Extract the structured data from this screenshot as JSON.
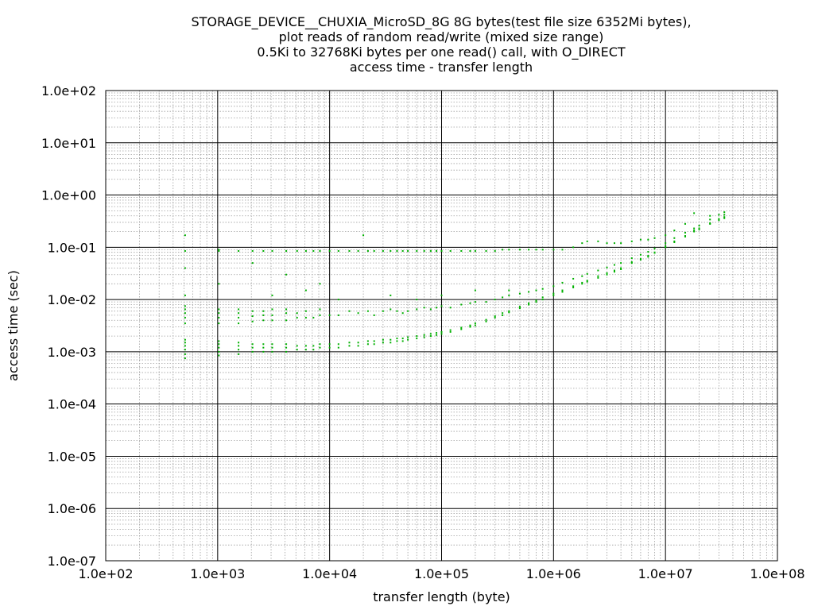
{
  "chart_data": {
    "type": "scatter",
    "title_lines": [
      "STORAGE_DEVICE__CHUXIA_MicroSD_8G 8G bytes(test file size 6352Mi bytes),",
      "plot reads of random read/write (mixed size range)",
      "0.5Ki to 32768Ki bytes per one read() call, with O_DIRECT",
      "access time - transfer length"
    ],
    "xlabel": "transfer length (byte)",
    "ylabel": "access time (sec)",
    "x_scale": "log",
    "y_scale": "log",
    "xlim": [
      100,
      100000000
    ],
    "ylim": [
      1e-07,
      100
    ],
    "x_ticks": [
      {
        "value": 100,
        "label": "1.0e+02"
      },
      {
        "value": 1000,
        "label": "1.0e+03"
      },
      {
        "value": 10000,
        "label": "1.0e+04"
      },
      {
        "value": 100000,
        "label": "1.0e+05"
      },
      {
        "value": 1000000,
        "label": "1.0e+06"
      },
      {
        "value": 10000000,
        "label": "1.0e+07"
      },
      {
        "value": 100000000,
        "label": "1.0e+08"
      }
    ],
    "y_ticks": [
      {
        "value": 100,
        "label": "1.0e+02"
      },
      {
        "value": 10,
        "label": "1.0e+01"
      },
      {
        "value": 1,
        "label": "1.0e+00"
      },
      {
        "value": 0.1,
        "label": "1.0e-01"
      },
      {
        "value": 0.01,
        "label": "1.0e-02"
      },
      {
        "value": 0.001,
        "label": "1.0e-03"
      },
      {
        "value": 0.0001,
        "label": "1.0e-04"
      },
      {
        "value": 1e-05,
        "label": "1.0e-05"
      },
      {
        "value": 1e-06,
        "label": "1.0e-06"
      },
      {
        "value": 1e-07,
        "label": "1.0e-07"
      }
    ],
    "grid": true,
    "minor_grid": true,
    "legend": "none",
    "point_color": "#00b000",
    "series": [
      {
        "points": [
          [
            512,
            0.00075
          ],
          [
            512,
            0.0009
          ],
          [
            512,
            0.0011
          ],
          [
            512,
            0.0013
          ],
          [
            512,
            0.0015
          ],
          [
            512,
            0.0017
          ],
          [
            512,
            0.0035
          ],
          [
            512,
            0.0045
          ],
          [
            512,
            0.0055
          ],
          [
            512,
            0.0065
          ],
          [
            512,
            0.0075
          ],
          [
            512,
            0.012
          ],
          [
            512,
            0.04
          ],
          [
            512,
            0.085
          ],
          [
            512,
            0.17
          ],
          [
            1024,
            0.00085
          ],
          [
            1024,
            0.001
          ],
          [
            1024,
            0.0012
          ],
          [
            1024,
            0.0014
          ],
          [
            1024,
            0.0016
          ],
          [
            1024,
            0.0035
          ],
          [
            1024,
            0.0045
          ],
          [
            1024,
            0.0055
          ],
          [
            1024,
            0.0065
          ],
          [
            1024,
            0.02
          ],
          [
            1024,
            0.085
          ],
          [
            1024,
            0.09
          ],
          [
            1536,
            0.0009
          ],
          [
            1536,
            0.0011
          ],
          [
            1536,
            0.0013
          ],
          [
            1536,
            0.0015
          ],
          [
            1536,
            0.0035
          ],
          [
            1536,
            0.0045
          ],
          [
            1536,
            0.0055
          ],
          [
            1536,
            0.0065
          ],
          [
            1536,
            0.085
          ],
          [
            2048,
            0.001
          ],
          [
            2048,
            0.0012
          ],
          [
            2048,
            0.0014
          ],
          [
            2048,
            0.0038
          ],
          [
            2048,
            0.0048
          ],
          [
            2048,
            0.006
          ],
          [
            2048,
            0.085
          ],
          [
            2048,
            0.05
          ],
          [
            2560,
            0.001
          ],
          [
            2560,
            0.0012
          ],
          [
            2560,
            0.0014
          ],
          [
            2560,
            0.004
          ],
          [
            2560,
            0.005
          ],
          [
            2560,
            0.006
          ],
          [
            2560,
            0.085
          ],
          [
            3072,
            0.001
          ],
          [
            3072,
            0.0012
          ],
          [
            3072,
            0.0014
          ],
          [
            3072,
            0.004
          ],
          [
            3072,
            0.005
          ],
          [
            3072,
            0.0065
          ],
          [
            3072,
            0.085
          ],
          [
            3072,
            0.012
          ],
          [
            4096,
            0.001
          ],
          [
            4096,
            0.0012
          ],
          [
            4096,
            0.0014
          ],
          [
            4096,
            0.004
          ],
          [
            4096,
            0.0055
          ],
          [
            4096,
            0.0065
          ],
          [
            4096,
            0.085
          ],
          [
            4096,
            0.03
          ],
          [
            5120,
            0.0011
          ],
          [
            5120,
            0.0013
          ],
          [
            5120,
            0.0045
          ],
          [
            5120,
            0.0055
          ],
          [
            5120,
            0.085
          ],
          [
            6144,
            0.0011
          ],
          [
            6144,
            0.0013
          ],
          [
            6144,
            0.0045
          ],
          [
            6144,
            0.006
          ],
          [
            6144,
            0.085
          ],
          [
            6144,
            0.015
          ],
          [
            7168,
            0.0011
          ],
          [
            7168,
            0.0013
          ],
          [
            7168,
            0.0045
          ],
          [
            7168,
            0.085
          ],
          [
            8192,
            0.0012
          ],
          [
            8192,
            0.0014
          ],
          [
            8192,
            0.005
          ],
          [
            8192,
            0.0065
          ],
          [
            8192,
            0.085
          ],
          [
            8192,
            0.02
          ],
          [
            10000,
            0.0012
          ],
          [
            10000,
            0.0014
          ],
          [
            10000,
            0.005
          ],
          [
            10000,
            0.085
          ],
          [
            12000,
            0.0012
          ],
          [
            12000,
            0.0014
          ],
          [
            12000,
            0.005
          ],
          [
            12000,
            0.085
          ],
          [
            12000,
            0.01
          ],
          [
            15000,
            0.0013
          ],
          [
            15000,
            0.0015
          ],
          [
            15000,
            0.006
          ],
          [
            15000,
            0.085
          ],
          [
            18000,
            0.0013
          ],
          [
            18000,
            0.0015
          ],
          [
            18000,
            0.0055
          ],
          [
            18000,
            0.085
          ],
          [
            20000,
            0.17
          ],
          [
            22000,
            0.0014
          ],
          [
            22000,
            0.0016
          ],
          [
            22000,
            0.006
          ],
          [
            22000,
            0.085
          ],
          [
            25000,
            0.0014
          ],
          [
            25000,
            0.0016
          ],
          [
            25000,
            0.005
          ],
          [
            25000,
            0.085
          ],
          [
            30000,
            0.0015
          ],
          [
            30000,
            0.0017
          ],
          [
            30000,
            0.006
          ],
          [
            30000,
            0.085
          ],
          [
            35000,
            0.0015
          ],
          [
            35000,
            0.0017
          ],
          [
            35000,
            0.0065
          ],
          [
            35000,
            0.085
          ],
          [
            35000,
            0.012
          ],
          [
            40000,
            0.0016
          ],
          [
            40000,
            0.0018
          ],
          [
            40000,
            0.006
          ],
          [
            40000,
            0.085
          ],
          [
            45000,
            0.0016
          ],
          [
            45000,
            0.0018
          ],
          [
            45000,
            0.0055
          ],
          [
            45000,
            0.085
          ],
          [
            50000,
            0.0017
          ],
          [
            50000,
            0.0019
          ],
          [
            50000,
            0.006
          ],
          [
            50000,
            0.085
          ],
          [
            60000,
            0.0018
          ],
          [
            60000,
            0.002
          ],
          [
            60000,
            0.0065
          ],
          [
            60000,
            0.085
          ],
          [
            60000,
            0.01
          ],
          [
            70000,
            0.0019
          ],
          [
            70000,
            0.0021
          ],
          [
            70000,
            0.007
          ],
          [
            70000,
            0.085
          ],
          [
            80000,
            0.002
          ],
          [
            80000,
            0.0022
          ],
          [
            80000,
            0.0065
          ],
          [
            80000,
            0.085
          ],
          [
            90000,
            0.0021
          ],
          [
            90000,
            0.0023
          ],
          [
            90000,
            0.007
          ],
          [
            90000,
            0.085
          ],
          [
            100000,
            0.0022
          ],
          [
            100000,
            0.0024
          ],
          [
            100000,
            0.0075
          ],
          [
            100000,
            0.085
          ],
          [
            100000,
            0.012
          ],
          [
            120000,
            0.0024
          ],
          [
            120000,
            0.0026
          ],
          [
            120000,
            0.007
          ],
          [
            120000,
            0.085
          ],
          [
            150000,
            0.0027
          ],
          [
            150000,
            0.0029
          ],
          [
            150000,
            0.008
          ],
          [
            150000,
            0.085
          ],
          [
            180000,
            0.003
          ],
          [
            180000,
            0.0032
          ],
          [
            180000,
            0.0085
          ],
          [
            180000,
            0.085
          ],
          [
            200000,
            0.0032
          ],
          [
            200000,
            0.0035
          ],
          [
            200000,
            0.009
          ],
          [
            200000,
            0.085
          ],
          [
            200000,
            0.015
          ],
          [
            250000,
            0.0038
          ],
          [
            250000,
            0.0041
          ],
          [
            250000,
            0.009
          ],
          [
            250000,
            0.085
          ],
          [
            300000,
            0.0045
          ],
          [
            300000,
            0.0048
          ],
          [
            300000,
            0.01
          ],
          [
            300000,
            0.085
          ],
          [
            350000,
            0.005
          ],
          [
            350000,
            0.0055
          ],
          [
            350000,
            0.011
          ],
          [
            350000,
            0.09
          ],
          [
            400000,
            0.0057
          ],
          [
            400000,
            0.006
          ],
          [
            400000,
            0.012
          ],
          [
            400000,
            0.09
          ],
          [
            400000,
            0.015
          ],
          [
            500000,
            0.0068
          ],
          [
            500000,
            0.0073
          ],
          [
            500000,
            0.013
          ],
          [
            500000,
            0.09
          ],
          [
            600000,
            0.008
          ],
          [
            600000,
            0.0085
          ],
          [
            600000,
            0.014
          ],
          [
            600000,
            0.09
          ],
          [
            700000,
            0.009
          ],
          [
            700000,
            0.0096
          ],
          [
            700000,
            0.015
          ],
          [
            700000,
            0.09
          ],
          [
            800000,
            0.01
          ],
          [
            800000,
            0.011
          ],
          [
            800000,
            0.016
          ],
          [
            800000,
            0.09
          ],
          [
            1000000,
            0.012
          ],
          [
            1000000,
            0.013
          ],
          [
            1000000,
            0.018
          ],
          [
            1000000,
            0.09
          ],
          [
            1200000,
            0.014
          ],
          [
            1200000,
            0.015
          ],
          [
            1200000,
            0.021
          ],
          [
            1200000,
            0.09
          ],
          [
            1500000,
            0.017
          ],
          [
            1500000,
            0.018
          ],
          [
            1500000,
            0.025
          ],
          [
            1500000,
            0.1
          ],
          [
            1800000,
            0.02
          ],
          [
            1800000,
            0.021
          ],
          [
            1800000,
            0.028
          ],
          [
            1800000,
            0.12
          ],
          [
            2000000,
            0.022
          ],
          [
            2000000,
            0.023
          ],
          [
            2000000,
            0.031
          ],
          [
            2000000,
            0.13
          ],
          [
            2500000,
            0.026
          ],
          [
            2500000,
            0.028
          ],
          [
            2500000,
            0.036
          ],
          [
            2500000,
            0.13
          ],
          [
            3000000,
            0.03
          ],
          [
            3000000,
            0.032
          ],
          [
            3000000,
            0.041
          ],
          [
            3000000,
            0.12
          ],
          [
            3500000,
            0.034
          ],
          [
            3500000,
            0.036
          ],
          [
            3500000,
            0.046
          ],
          [
            3500000,
            0.12
          ],
          [
            4000000,
            0.038
          ],
          [
            4000000,
            0.04
          ],
          [
            4000000,
            0.05
          ],
          [
            4000000,
            0.12
          ],
          [
            5000000,
            0.05
          ],
          [
            5000000,
            0.052
          ],
          [
            5000000,
            0.062
          ],
          [
            5000000,
            0.13
          ],
          [
            6000000,
            0.058
          ],
          [
            6000000,
            0.06
          ],
          [
            6000000,
            0.072
          ],
          [
            6000000,
            0.14
          ],
          [
            7000000,
            0.066
          ],
          [
            7000000,
            0.069
          ],
          [
            7000000,
            0.082
          ],
          [
            7000000,
            0.14
          ],
          [
            8000000,
            0.078
          ],
          [
            8000000,
            0.08
          ],
          [
            8000000,
            0.095
          ],
          [
            8000000,
            0.15
          ],
          [
            10000000,
            0.1
          ],
          [
            10000000,
            0.105
          ],
          [
            10000000,
            0.12
          ],
          [
            10000000,
            0.17
          ],
          [
            12000000,
            0.125
          ],
          [
            12000000,
            0.13
          ],
          [
            12000000,
            0.15
          ],
          [
            12000000,
            0.21
          ],
          [
            15000000,
            0.16
          ],
          [
            15000000,
            0.165
          ],
          [
            15000000,
            0.19
          ],
          [
            15000000,
            0.28
          ],
          [
            18000000,
            0.2
          ],
          [
            18000000,
            0.21
          ],
          [
            18000000,
            0.23
          ],
          [
            18000000,
            0.45
          ],
          [
            20000000,
            0.22
          ],
          [
            20000000,
            0.23
          ],
          [
            20000000,
            0.26
          ],
          [
            25000000,
            0.28
          ],
          [
            25000000,
            0.29
          ],
          [
            25000000,
            0.34
          ],
          [
            25000000,
            0.4
          ],
          [
            30000000,
            0.33
          ],
          [
            30000000,
            0.35
          ],
          [
            30000000,
            0.42
          ],
          [
            33554432,
            0.36
          ],
          [
            33554432,
            0.38
          ],
          [
            33554432,
            0.42
          ],
          [
            33554432,
            0.47
          ]
        ]
      }
    ]
  }
}
